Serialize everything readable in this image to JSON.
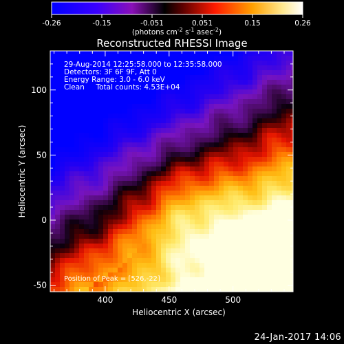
{
  "chart_data": {
    "type": "heatmap",
    "title": "Reconstructed RHESSI Image",
    "xlabel": "Heliocentric X (arcsec)",
    "ylabel": "Heliocentric Y (arcsec)",
    "xlim": [
      357,
      547
    ],
    "ylim": [
      -55,
      130
    ],
    "x_ticks": [
      400,
      450,
      500
    ],
    "y_ticks": [
      -50,
      0,
      50,
      100
    ],
    "colorbar": {
      "ticks": [
        "-0.26",
        "-0.15",
        "-0.051",
        "0.051",
        "0.15",
        "0.26"
      ],
      "unit_label": "(photons cm",
      "unit_sup1": "-2",
      "unit_mid1": " s",
      "unit_sup2": "-1",
      "unit_mid2": " asec",
      "unit_sup3": "-2",
      "unit_end": ")",
      "range": [
        -0.26,
        0.26
      ]
    },
    "info_lines": [
      "29-Aug-2014 12:25:58.000 to 12:35:58.000",
      "Detectors: 3F 6F 9F, Att 0",
      "Energy Range: 3.0 - 6.0 keV",
      "Clean     Total counts: 4.53E+04"
    ],
    "peak_label": "Position of Peak = [526,-22]",
    "peak_position": [
      526,
      -22
    ],
    "colors": {
      "colormap": [
        "#0000ff",
        "#7a00d0",
        "#ff0000",
        "#ffb000",
        "#ffffc8"
      ]
    }
  },
  "footer": {
    "timestamp": "24-Jan-2017 14:06"
  }
}
